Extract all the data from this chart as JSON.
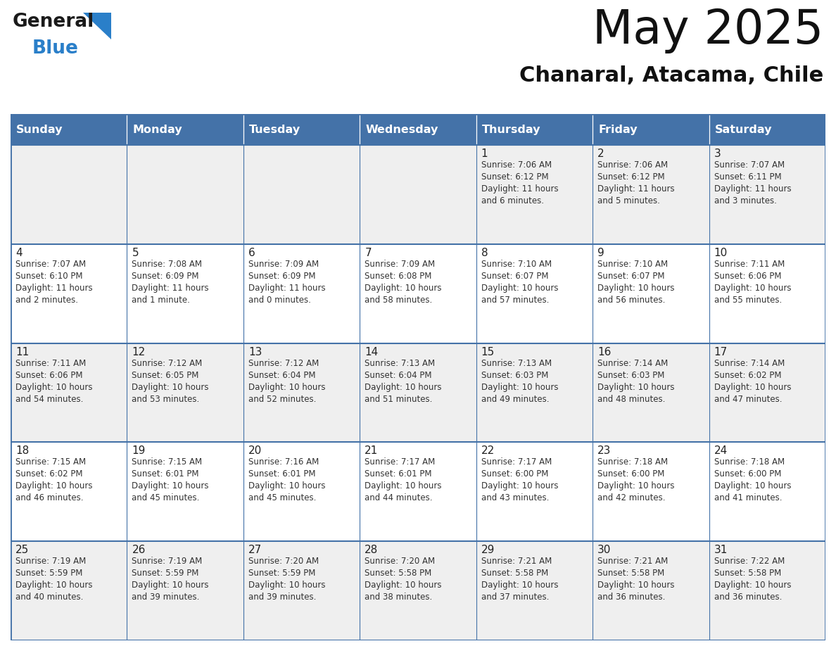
{
  "title": "May 2025",
  "subtitle": "Chanaral, Atacama, Chile",
  "days_of_week": [
    "Sunday",
    "Monday",
    "Tuesday",
    "Wednesday",
    "Thursday",
    "Friday",
    "Saturday"
  ],
  "header_bg": "#4472a8",
  "header_text": "#ffffff",
  "cell_bg_odd_row": "#efefef",
  "cell_bg_even_row": "#ffffff",
  "border_color": "#4472a8",
  "text_color": "#333333",
  "day_num_color": "#222222",
  "logo_general_color": "#1a1a1a",
  "logo_blue_color": "#2a7fc9",
  "calendar_data": [
    [
      "",
      "",
      "",
      "",
      "1\nSunrise: 7:06 AM\nSunset: 6:12 PM\nDaylight: 11 hours\nand 6 minutes.",
      "2\nSunrise: 7:06 AM\nSunset: 6:12 PM\nDaylight: 11 hours\nand 5 minutes.",
      "3\nSunrise: 7:07 AM\nSunset: 6:11 PM\nDaylight: 11 hours\nand 3 minutes."
    ],
    [
      "4\nSunrise: 7:07 AM\nSunset: 6:10 PM\nDaylight: 11 hours\nand 2 minutes.",
      "5\nSunrise: 7:08 AM\nSunset: 6:09 PM\nDaylight: 11 hours\nand 1 minute.",
      "6\nSunrise: 7:09 AM\nSunset: 6:09 PM\nDaylight: 11 hours\nand 0 minutes.",
      "7\nSunrise: 7:09 AM\nSunset: 6:08 PM\nDaylight: 10 hours\nand 58 minutes.",
      "8\nSunrise: 7:10 AM\nSunset: 6:07 PM\nDaylight: 10 hours\nand 57 minutes.",
      "9\nSunrise: 7:10 AM\nSunset: 6:07 PM\nDaylight: 10 hours\nand 56 minutes.",
      "10\nSunrise: 7:11 AM\nSunset: 6:06 PM\nDaylight: 10 hours\nand 55 minutes."
    ],
    [
      "11\nSunrise: 7:11 AM\nSunset: 6:06 PM\nDaylight: 10 hours\nand 54 minutes.",
      "12\nSunrise: 7:12 AM\nSunset: 6:05 PM\nDaylight: 10 hours\nand 53 minutes.",
      "13\nSunrise: 7:12 AM\nSunset: 6:04 PM\nDaylight: 10 hours\nand 52 minutes.",
      "14\nSunrise: 7:13 AM\nSunset: 6:04 PM\nDaylight: 10 hours\nand 51 minutes.",
      "15\nSunrise: 7:13 AM\nSunset: 6:03 PM\nDaylight: 10 hours\nand 49 minutes.",
      "16\nSunrise: 7:14 AM\nSunset: 6:03 PM\nDaylight: 10 hours\nand 48 minutes.",
      "17\nSunrise: 7:14 AM\nSunset: 6:02 PM\nDaylight: 10 hours\nand 47 minutes."
    ],
    [
      "18\nSunrise: 7:15 AM\nSunset: 6:02 PM\nDaylight: 10 hours\nand 46 minutes.",
      "19\nSunrise: 7:15 AM\nSunset: 6:01 PM\nDaylight: 10 hours\nand 45 minutes.",
      "20\nSunrise: 7:16 AM\nSunset: 6:01 PM\nDaylight: 10 hours\nand 45 minutes.",
      "21\nSunrise: 7:17 AM\nSunset: 6:01 PM\nDaylight: 10 hours\nand 44 minutes.",
      "22\nSunrise: 7:17 AM\nSunset: 6:00 PM\nDaylight: 10 hours\nand 43 minutes.",
      "23\nSunrise: 7:18 AM\nSunset: 6:00 PM\nDaylight: 10 hours\nand 42 minutes.",
      "24\nSunrise: 7:18 AM\nSunset: 6:00 PM\nDaylight: 10 hours\nand 41 minutes."
    ],
    [
      "25\nSunrise: 7:19 AM\nSunset: 5:59 PM\nDaylight: 10 hours\nand 40 minutes.",
      "26\nSunrise: 7:19 AM\nSunset: 5:59 PM\nDaylight: 10 hours\nand 39 minutes.",
      "27\nSunrise: 7:20 AM\nSunset: 5:59 PM\nDaylight: 10 hours\nand 39 minutes.",
      "28\nSunrise: 7:20 AM\nSunset: 5:58 PM\nDaylight: 10 hours\nand 38 minutes.",
      "29\nSunrise: 7:21 AM\nSunset: 5:58 PM\nDaylight: 10 hours\nand 37 minutes.",
      "30\nSunrise: 7:21 AM\nSunset: 5:58 PM\nDaylight: 10 hours\nand 36 minutes.",
      "31\nSunrise: 7:22 AM\nSunset: 5:58 PM\nDaylight: 10 hours\nand 36 minutes."
    ]
  ]
}
